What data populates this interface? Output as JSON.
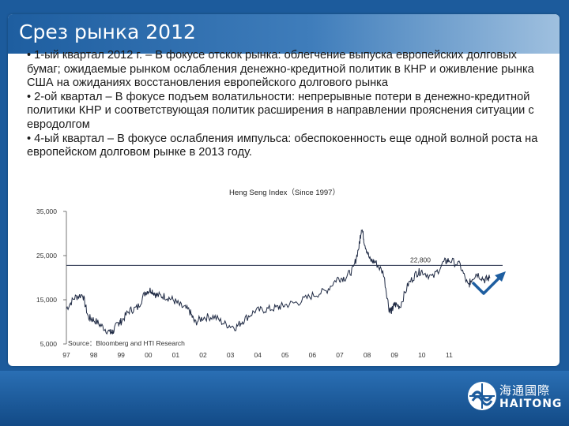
{
  "slide": {
    "title": "Срез рынка 2012",
    "bullets": [
      "• 1-ый квартал 2012 г. – В фокусе отскок рынка: облегчение выпуска европейских долговых бумаг; ожидаемые рынком ослабления денежно-кредитной политик в КНР и оживление рынка США на ожиданиях восстановления европейского долгового рынка",
      "• 2-ой квартал – В фокусе подъем волатильности: непрерывные потери в денежно-кредитной политики КНР и соответствующая политик расширения в направлении прояснения ситуации с евродолгом",
      "• 4-ый квартал – В фокусе ослабления импульса: обеспокоенность еще одной волной роста на европейском долговом рынке в 2013 году."
    ]
  },
  "chart_data": {
    "type": "line",
    "title": "Heng Seng Index（Since 1997）",
    "source": "Source：Bloomberg and HTI Research",
    "x_ticks": [
      "97",
      "98",
      "99",
      "00",
      "01",
      "02",
      "03",
      "04",
      "05",
      "06",
      "07",
      "08",
      "09",
      "10",
      "11"
    ],
    "y_ticks": [
      "35,000",
      "25,000",
      "15,000",
      "5,000"
    ],
    "ylim": [
      5000,
      35000
    ],
    "reference_line": {
      "value": 22800,
      "label": "22,800"
    },
    "series": [
      {
        "x": [
          1997.0,
          1997.3,
          1997.6,
          1997.8,
          1998.0,
          1998.3,
          1998.6,
          1998.7,
          1998.9,
          1999.0,
          1999.3,
          1999.6,
          1999.9,
          2000.1,
          2000.3,
          2000.6,
          2000.9,
          2001.2,
          2001.5,
          2001.7,
          2002.0,
          2002.4,
          2002.8,
          2003.2,
          2003.5,
          2003.9,
          2004.3,
          2004.7,
          2005.0,
          2005.5,
          2006.0,
          2006.5,
          2006.9,
          2007.2,
          2007.5,
          2007.7,
          2007.8,
          2007.9,
          2008.1,
          2008.3,
          2008.6,
          2008.8,
          2008.9,
          2009.0,
          2009.2,
          2009.5,
          2009.8,
          2010.0,
          2010.4,
          2010.8,
          2011.0,
          2011.4,
          2011.7,
          2011.8,
          2012.0,
          2012.3,
          2012.5
        ],
        "values": [
          13000,
          15500,
          16200,
          11000,
          10500,
          9000,
          7500,
          7800,
          9800,
          10100,
          12500,
          13200,
          16800,
          17300,
          16000,
          15800,
          15000,
          13500,
          12500,
          9800,
          11000,
          11200,
          9500,
          8800,
          10500,
          12500,
          12800,
          13200,
          13800,
          14500,
          16000,
          17000,
          19800,
          20000,
          22000,
          27000,
          31500,
          28000,
          24000,
          23500,
          21000,
          13000,
          12500,
          14000,
          13500,
          18500,
          21000,
          21500,
          20000,
          23500,
          24000,
          22800,
          18000,
          19500,
          21000,
          19500,
          20000
        ]
      }
    ]
  },
  "logo": {
    "name_cn": "海通國際",
    "name_en": "HAITONG"
  },
  "colors": {
    "title_bar": "#1e5ea0",
    "background": "#1c5b9c",
    "series": "#1f2a44",
    "arrow": "#1e5ea0"
  }
}
